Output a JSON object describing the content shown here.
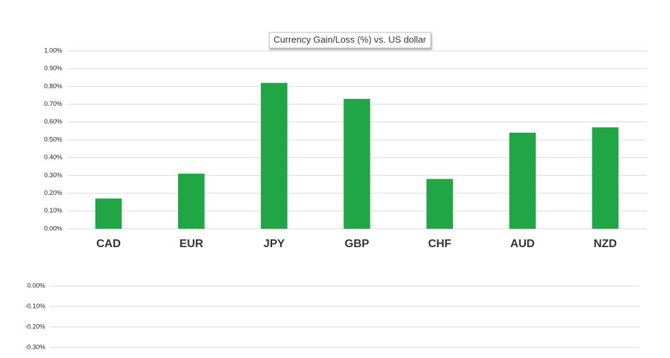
{
  "chart_data": [
    {
      "type": "bar",
      "title": "Currency  Gain/Loss (%) vs. US dollar",
      "categories": [
        "CAD",
        "EUR",
        "JPY",
        "GBP",
        "CHF",
        "AUD",
        "NZD"
      ],
      "values": [
        0.17,
        0.31,
        0.82,
        0.73,
        0.28,
        0.54,
        0.57
      ],
      "color": "#21a646",
      "ylim": [
        0,
        1
      ],
      "yticks": [
        {
          "value": 0,
          "label": "0.00%"
        },
        {
          "value": 0.1,
          "label": "0.10%"
        },
        {
          "value": 0.2,
          "label": "0.20%"
        },
        {
          "value": 0.3,
          "label": "0.30%"
        },
        {
          "value": 0.4,
          "label": "0.40%"
        },
        {
          "value": 0.5,
          "label": "0.50%"
        },
        {
          "value": 0.6,
          "label": "0.60%"
        },
        {
          "value": 0.7,
          "label": "0.70%"
        },
        {
          "value": 0.8,
          "label": "0.80%"
        },
        {
          "value": 0.9,
          "label": "0.90%"
        },
        {
          "value": 1,
          "label": "1.00%"
        }
      ],
      "grid": true
    },
    {
      "type": "bar",
      "ylim": [
        -0.3,
        0
      ],
      "yticks": [
        {
          "value": 0,
          "label": "0.00%"
        },
        {
          "value": -0.1,
          "label": "-0.10%"
        },
        {
          "value": -0.2,
          "label": "-0.20%"
        },
        {
          "value": -0.3,
          "label": "-0.30%"
        }
      ],
      "grid": true
    }
  ]
}
